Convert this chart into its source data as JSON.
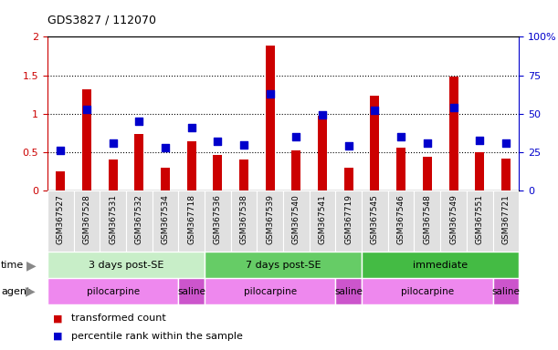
{
  "title": "GDS3827 / 112070",
  "samples": [
    "GSM367527",
    "GSM367528",
    "GSM367531",
    "GSM367532",
    "GSM367534",
    "GSM367718",
    "GSM367536",
    "GSM367538",
    "GSM367539",
    "GSM367540",
    "GSM367541",
    "GSM367719",
    "GSM367545",
    "GSM367546",
    "GSM367548",
    "GSM367549",
    "GSM367551",
    "GSM367721"
  ],
  "bar_values": [
    0.25,
    1.32,
    0.4,
    0.74,
    0.3,
    0.64,
    0.46,
    0.41,
    1.88,
    0.52,
    0.97,
    0.3,
    1.24,
    0.56,
    0.44,
    1.48,
    0.5,
    0.42
  ],
  "dot_values_pct": [
    26,
    53,
    31,
    45,
    28,
    41,
    32,
    30,
    63,
    35,
    49,
    29,
    52,
    35,
    31,
    54,
    33,
    31
  ],
  "bar_color": "#cc0000",
  "dot_color": "#0000cc",
  "ylim_left": [
    0,
    2
  ],
  "ylim_right": [
    0,
    100
  ],
  "yticks_left": [
    0,
    0.5,
    1.0,
    1.5,
    2.0
  ],
  "yticks_right": [
    0,
    25,
    50,
    75,
    100
  ],
  "ytick_labels_left": [
    "0",
    "0.5",
    "1",
    "1.5",
    "2"
  ],
  "ytick_labels_right": [
    "0",
    "25",
    "50",
    "75",
    "100%"
  ],
  "grid_lines": [
    0.5,
    1.0,
    1.5
  ],
  "time_groups": [
    {
      "label": "3 days post-SE",
      "start": 0,
      "end": 6,
      "color": "#c8eec8"
    },
    {
      "label": "7 days post-SE",
      "start": 6,
      "end": 12,
      "color": "#66cc66"
    },
    {
      "label": "immediate",
      "start": 12,
      "end": 18,
      "color": "#44bb44"
    }
  ],
  "agent_groups": [
    {
      "label": "pilocarpine",
      "start": 0,
      "end": 5,
      "color": "#ee88ee"
    },
    {
      "label": "saline",
      "start": 5,
      "end": 6,
      "color": "#cc55cc"
    },
    {
      "label": "pilocarpine",
      "start": 6,
      "end": 11,
      "color": "#ee88ee"
    },
    {
      "label": "saline",
      "start": 11,
      "end": 12,
      "color": "#cc55cc"
    },
    {
      "label": "pilocarpine",
      "start": 12,
      "end": 17,
      "color": "#ee88ee"
    },
    {
      "label": "saline",
      "start": 17,
      "end": 18,
      "color": "#cc55cc"
    }
  ],
  "legend_bar_label": "transformed count",
  "legend_dot_label": "percentile rank within the sample",
  "time_label": "time",
  "agent_label": "agent",
  "bar_width": 0.35,
  "dot_size": 35,
  "background_color": "#ffffff",
  "tick_color_left": "#cc0000",
  "tick_color_right": "#0000cc",
  "sample_bg_color": "#e0e0e0",
  "sample_line_color": "#aaaaaa"
}
